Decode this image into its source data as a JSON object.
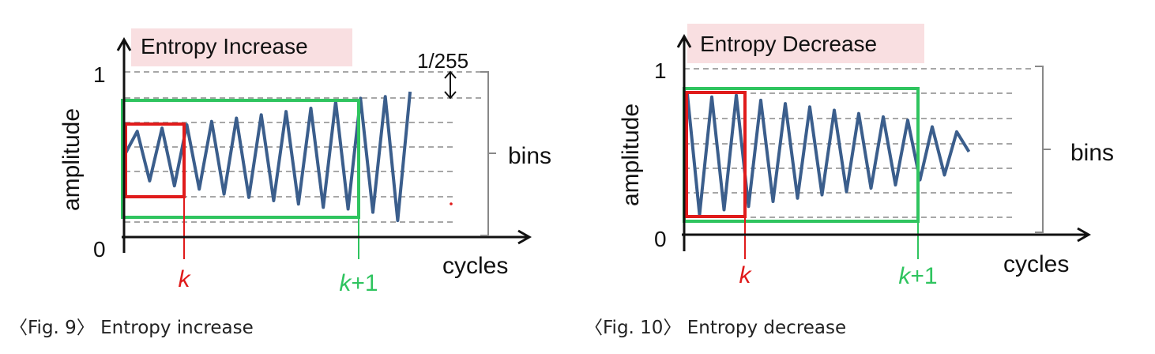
{
  "figures": [
    {
      "title": "Entropy Increase",
      "y_label": "amplitude",
      "x_label": "cycles",
      "y_tick_top": "1",
      "y_tick_bottom": "0",
      "bin_width_label": "1/255",
      "bins_label": "bins",
      "k_label": "k",
      "k1_label": "k+1",
      "caption": "〈Fig. 9〉 Entropy increase",
      "signal": [
        0.5,
        0.64,
        0.34,
        0.66,
        0.31,
        0.68,
        0.29,
        0.7,
        0.26,
        0.72,
        0.24,
        0.74,
        0.22,
        0.76,
        0.2,
        0.78,
        0.18,
        0.82,
        0.17,
        0.84,
        0.15,
        0.85,
        0.1,
        0.88
      ]
    },
    {
      "title": "Entropy Decrease",
      "y_label": "amplitude",
      "x_label": "cycles",
      "y_tick_top": "1",
      "y_tick_bottom": "0",
      "bins_label": "bins",
      "k_label": "k",
      "k1_label": "k+1",
      "caption": "〈Fig. 10〉 Entropy decrease",
      "signal": [
        0.85,
        0.12,
        0.83,
        0.15,
        0.84,
        0.17,
        0.81,
        0.2,
        0.79,
        0.22,
        0.77,
        0.24,
        0.75,
        0.26,
        0.73,
        0.28,
        0.71,
        0.3,
        0.69,
        0.33,
        0.65,
        0.36,
        0.62,
        0.5
      ]
    }
  ],
  "colors": {
    "signal": "#3b5e8c",
    "window_k": "#e01b1b",
    "window_k1": "#2fc45f",
    "title_bg": "#f9dfe1",
    "axis": "#111111",
    "grid": "#8a8a8a"
  }
}
